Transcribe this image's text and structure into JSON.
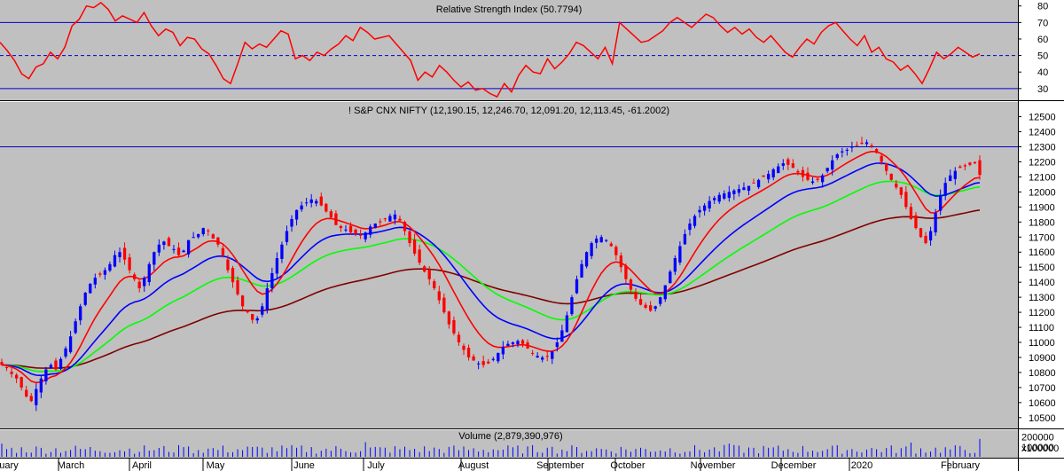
{
  "colors": {
    "panel_bg": "#c0c0c0",
    "axis_bg": "#ffffff",
    "rsi_line": "#ff0000",
    "ref_line": "#0000cc",
    "up_candle": "#0000ff",
    "down_candle": "#ff0000",
    "ema_red": "#ff0000",
    "ema_blue": "#0000ff",
    "ema_green": "#00ff00",
    "ema_brown": "#800000",
    "volume_bar": "#0000ff"
  },
  "chart_data": [
    {
      "type": "line",
      "title": "Relative Strength Index (50.7794)",
      "y_ticks": [
        30,
        40,
        50,
        60,
        70,
        80
      ],
      "ylim": [
        24,
        82
      ],
      "reference_lines": [
        30,
        50,
        70
      ],
      "series": [
        {
          "values": [
            58,
            53,
            47,
            39,
            36,
            43,
            45,
            52,
            48,
            55,
            68,
            72,
            80,
            79,
            82,
            78,
            71,
            74,
            72,
            70,
            76,
            68,
            62,
            66,
            64,
            56,
            61,
            60,
            54,
            51,
            44,
            36,
            33,
            45,
            58,
            54,
            57,
            55,
            60,
            65,
            63,
            48,
            50,
            47,
            52,
            50,
            54,
            57,
            62,
            59,
            67,
            64,
            60,
            61,
            62,
            57,
            52,
            47,
            35,
            40,
            37,
            44,
            40,
            35,
            31,
            34,
            29,
            30,
            27,
            25,
            33,
            28,
            38,
            44,
            40,
            39,
            48,
            42,
            46,
            51,
            58,
            56,
            52,
            48,
            55,
            45,
            70,
            66,
            62,
            58,
            59,
            62,
            65,
            70,
            73,
            70,
            67,
            71,
            75,
            73,
            68,
            64,
            67,
            63,
            66,
            61,
            58,
            62,
            57,
            52,
            49,
            55,
            60,
            57,
            64,
            68,
            70,
            65,
            60,
            56,
            62,
            52,
            55,
            48,
            46,
            41,
            44,
            39,
            33,
            42,
            52,
            48,
            51,
            55,
            52,
            49,
            51
          ]
        }
      ]
    },
    {
      "type": "candlestick",
      "title": "! S&P CNX NIFTY (12,190.15, 12,246.70, 12,091.20, 12,113.45, -61.2002)",
      "y_ticks": [
        10500,
        10600,
        10700,
        10800,
        10900,
        11000,
        11100,
        11200,
        11300,
        11400,
        11500,
        11600,
        11700,
        11800,
        11900,
        12000,
        12100,
        12200,
        12300,
        12400,
        12500
      ],
      "ylim": [
        10440,
        12580
      ],
      "reference_lines": [
        12300
      ],
      "x_month_labels": [
        "uary",
        "March",
        "April",
        "May",
        "June",
        "July",
        "August",
        "September",
        "October",
        "November",
        "December",
        "2020",
        "February"
      ],
      "close": [
        10850,
        10830,
        10790,
        10760,
        10700,
        10640,
        10610,
        10690,
        10760,
        10820,
        10850,
        10820,
        10890,
        10960,
        11040,
        11140,
        11240,
        11330,
        11390,
        11430,
        11450,
        11480,
        11520,
        11580,
        11600,
        11550,
        11480,
        11420,
        11360,
        11430,
        11520,
        11600,
        11650,
        11670,
        11640,
        11620,
        11580,
        11610,
        11680,
        11700,
        11720,
        11760,
        11740,
        11690,
        11650,
        11580,
        11480,
        11400,
        11320,
        11240,
        11200,
        11150,
        11160,
        11240,
        11360,
        11460,
        11560,
        11650,
        11740,
        11820,
        11880,
        11910,
        11930,
        11950,
        11940,
        11910,
        11870,
        11830,
        11780,
        11760,
        11750,
        11730,
        11720,
        11710,
        11730,
        11770,
        11790,
        11800,
        11820,
        11840,
        11850,
        11810,
        11740,
        11660,
        11590,
        11530,
        11470,
        11420,
        11360,
        11280,
        11200,
        11120,
        11060,
        11000,
        10950,
        10900,
        10880,
        10860,
        10850,
        10860,
        10890,
        10930,
        10970,
        10990,
        11000,
        11010,
        10990,
        10960,
        10930,
        10910,
        10900,
        10910,
        10940,
        11000,
        11080,
        11180,
        11300,
        11420,
        11520,
        11600,
        11660,
        11690,
        11700,
        11680,
        11640,
        11580,
        11500,
        11420,
        11350,
        11290,
        11250,
        11230,
        11210,
        11240,
        11300,
        11380,
        11470,
        11560,
        11640,
        11720,
        11790,
        11840,
        11880,
        11910,
        11940,
        11960,
        11980,
        11990,
        12000,
        12010,
        12020,
        12030,
        12040,
        12060,
        12080,
        12100,
        12120,
        12150,
        12170,
        12190,
        12180,
        12160,
        12130,
        12100,
        12080,
        12070,
        12080,
        12110,
        12160,
        12210,
        12250,
        12270,
        12280,
        12300,
        12310,
        12320,
        12330,
        12300,
        12260,
        12200,
        12140,
        12080,
        12030,
        11980,
        11900,
        11820,
        11760,
        11700,
        11660,
        11740,
        11860,
        11980,
        12060,
        12110,
        12140,
        12160,
        12170,
        12180,
        12190,
        12113
      ]
    },
    {
      "type": "bar",
      "title": "Volume (2,879,390,976)",
      "y_ticks": [
        100000,
        200000
      ],
      "unit_label": "x100000",
      "ylim": [
        0,
        250000
      ]
    }
  ]
}
